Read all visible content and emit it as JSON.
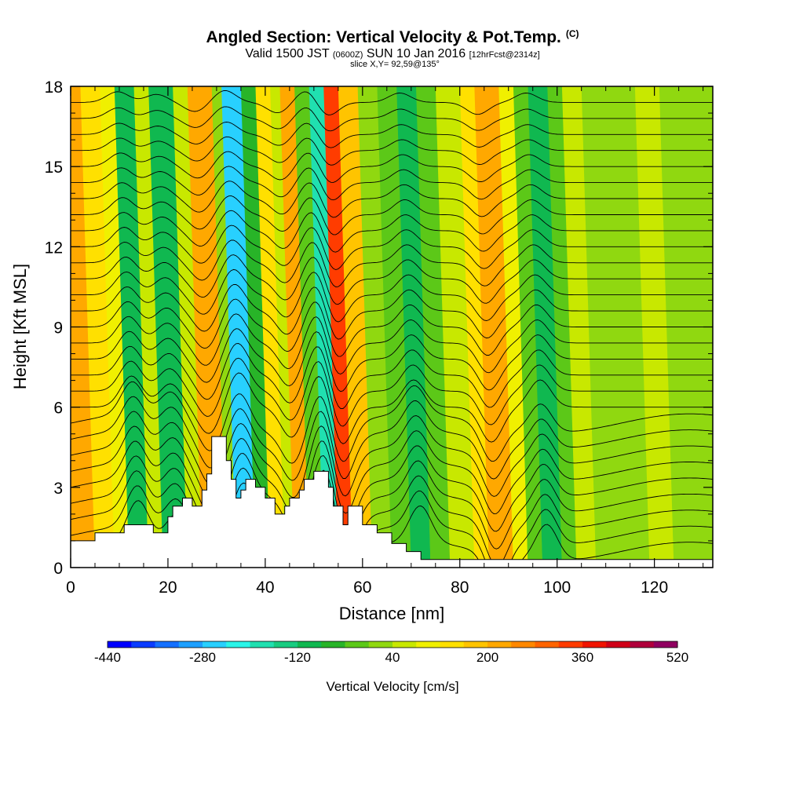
{
  "title": {
    "main": "Angled Section: Vertical Velocity & Pot.Temp.",
    "copyright": "(C)",
    "valid_prefix": "Valid 1500 JST",
    "valid_utc": "(0600Z)",
    "valid_date": "SUN 10 Jan 2016",
    "forecast": "[12hrFcst@2314z]",
    "slice": "slice X,Y= 92,59@135°"
  },
  "chart_data": {
    "type": "heatmap",
    "xlabel": "Distance [nm]",
    "ylabel": "Height [Kft MSL]",
    "xlim": [
      0,
      132
    ],
    "ylim": [
      0,
      18
    ],
    "x_ticks": [
      0,
      20,
      40,
      60,
      80,
      100,
      120
    ],
    "y_ticks": [
      0,
      3,
      6,
      9,
      12,
      15,
      18
    ],
    "colorbar": {
      "label": "Vertical Velocity [cm/s]",
      "tick_labels": [
        "-440",
        "-280",
        "-120",
        "40",
        "200",
        "360",
        "520"
      ],
      "min": -440,
      "max": 520,
      "step": 40,
      "colors": [
        "#0000ff",
        "#0a3cff",
        "#1470ff",
        "#1ea0ff",
        "#28d0ff",
        "#2af5e8",
        "#20e0b0",
        "#18cc80",
        "#10b850",
        "#28b428",
        "#5cc818",
        "#90d810",
        "#c8e800",
        "#f0f000",
        "#ffe000",
        "#ffc400",
        "#ffa800",
        "#ff8800",
        "#ff6400",
        "#ff3c00",
        "#f01400",
        "#d00018",
        "#b0003c",
        "#900060",
        "#700080"
      ]
    },
    "velocity_bands": [
      {
        "x": 0,
        "w": 5,
        "v": 210,
        "top": 18
      },
      {
        "x": 5,
        "w": 4,
        "v": 140,
        "top": 18
      },
      {
        "x": 9,
        "w": 3,
        "v": 80,
        "top": 18
      },
      {
        "x": 12,
        "w": 4,
        "v": -100,
        "top": 18
      },
      {
        "x": 16,
        "w": 3,
        "v": 60,
        "top": 18
      },
      {
        "x": 19,
        "w": 5,
        "v": -120,
        "top": 18
      },
      {
        "x": 24,
        "w": 3,
        "v": 60,
        "top": 18
      },
      {
        "x": 27,
        "w": 5,
        "v": 230,
        "top": 18
      },
      {
        "x": 32,
        "w": 2,
        "v": 20,
        "top": 18
      },
      {
        "x": 34,
        "w": 4,
        "v": -250,
        "top": 18
      },
      {
        "x": 38,
        "w": 3,
        "v": -60,
        "top": 18
      },
      {
        "x": 41,
        "w": 3,
        "v": 140,
        "top": 18
      },
      {
        "x": 44,
        "w": 2,
        "v": 40,
        "top": 18
      },
      {
        "x": 46,
        "w": 3,
        "v": 230,
        "top": 18
      },
      {
        "x": 49,
        "w": 3,
        "v": -40,
        "top": 18
      },
      {
        "x": 52,
        "w": 3,
        "v": -180,
        "top": 18
      },
      {
        "x": 55,
        "w": 3,
        "v": 340,
        "top": 18
      },
      {
        "x": 58,
        "w": 4,
        "v": 160,
        "top": 18
      },
      {
        "x": 62,
        "w": 4,
        "v": 20,
        "top": 18
      },
      {
        "x": 66,
        "w": 4,
        "v": -40,
        "top": 18
      },
      {
        "x": 70,
        "w": 4,
        "v": -100,
        "top": 18
      },
      {
        "x": 74,
        "w": 4,
        "v": -20,
        "top": 18
      },
      {
        "x": 78,
        "w": 5,
        "v": 60,
        "top": 18
      },
      {
        "x": 83,
        "w": 3,
        "v": 120,
        "top": 18
      },
      {
        "x": 86,
        "w": 5,
        "v": 230,
        "top": 18
      },
      {
        "x": 91,
        "w": 3,
        "v": 80,
        "top": 18
      },
      {
        "x": 94,
        "w": 3,
        "v": -20,
        "top": 18
      },
      {
        "x": 97,
        "w": 4,
        "v": -120,
        "top": 18
      },
      {
        "x": 101,
        "w": 3,
        "v": -20,
        "top": 18
      },
      {
        "x": 104,
        "w": 4,
        "v": 60,
        "top": 18
      },
      {
        "x": 108,
        "w": 5,
        "v": 20,
        "top": 18
      },
      {
        "x": 113,
        "w": 6,
        "v": 0,
        "top": 18
      },
      {
        "x": 119,
        "w": 5,
        "v": 40,
        "top": 18
      },
      {
        "x": 124,
        "w": 8,
        "v": 20,
        "top": 18
      }
    ],
    "terrain": [
      [
        0,
        1.0
      ],
      [
        5,
        1.0
      ],
      [
        5,
        1.3
      ],
      [
        11,
        1.3
      ],
      [
        11,
        1.6
      ],
      [
        17,
        1.6
      ],
      [
        17,
        1.3
      ],
      [
        20,
        1.3
      ],
      [
        20,
        1.9
      ],
      [
        21,
        1.9
      ],
      [
        21,
        2.3
      ],
      [
        23,
        2.3
      ],
      [
        23,
        2.6
      ],
      [
        25,
        2.6
      ],
      [
        25,
        2.3
      ],
      [
        27,
        2.3
      ],
      [
        27,
        2.9
      ],
      [
        28,
        2.9
      ],
      [
        28,
        3.5
      ],
      [
        29,
        3.5
      ],
      [
        29,
        4.9
      ],
      [
        32,
        4.9
      ],
      [
        32,
        4.0
      ],
      [
        33,
        4.0
      ],
      [
        33,
        3.3
      ],
      [
        34,
        3.3
      ],
      [
        34,
        2.6
      ],
      [
        35,
        2.6
      ],
      [
        35,
        2.9
      ],
      [
        36,
        2.9
      ],
      [
        36,
        3.3
      ],
      [
        38,
        3.3
      ],
      [
        38,
        3.0
      ],
      [
        40,
        3.0
      ],
      [
        40,
        2.6
      ],
      [
        42,
        2.6
      ],
      [
        42,
        2.0
      ],
      [
        44,
        2.0
      ],
      [
        44,
        2.3
      ],
      [
        45,
        2.3
      ],
      [
        45,
        2.6
      ],
      [
        47,
        2.6
      ],
      [
        47,
        2.9
      ],
      [
        48,
        2.9
      ],
      [
        48,
        3.3
      ],
      [
        50,
        3.3
      ],
      [
        50,
        3.6
      ],
      [
        53,
        3.6
      ],
      [
        53,
        3.0
      ],
      [
        54,
        3.0
      ],
      [
        54,
        2.3
      ],
      [
        56,
        2.3
      ],
      [
        56,
        1.6
      ],
      [
        57,
        1.6
      ],
      [
        57,
        2.3
      ],
      [
        60,
        2.3
      ],
      [
        60,
        1.6
      ],
      [
        63,
        1.6
      ],
      [
        63,
        1.3
      ],
      [
        66,
        1.3
      ],
      [
        66,
        0.9
      ],
      [
        69,
        0.9
      ],
      [
        69,
        0.6
      ],
      [
        72,
        0.6
      ],
      [
        72,
        0.3
      ],
      [
        132,
        0.3
      ]
    ],
    "contour_levels": [
      0.6,
      1.2,
      1.8,
      2.4,
      3.0,
      3.6,
      4.2,
      4.8,
      5.4,
      6.0,
      6.6,
      7.2,
      7.8,
      8.4,
      9.0,
      9.6,
      10.2,
      10.8,
      11.4,
      12.0,
      12.6,
      13.2,
      13.8,
      14.4,
      15.0,
      15.6,
      16.2,
      16.8,
      17.4
    ]
  }
}
